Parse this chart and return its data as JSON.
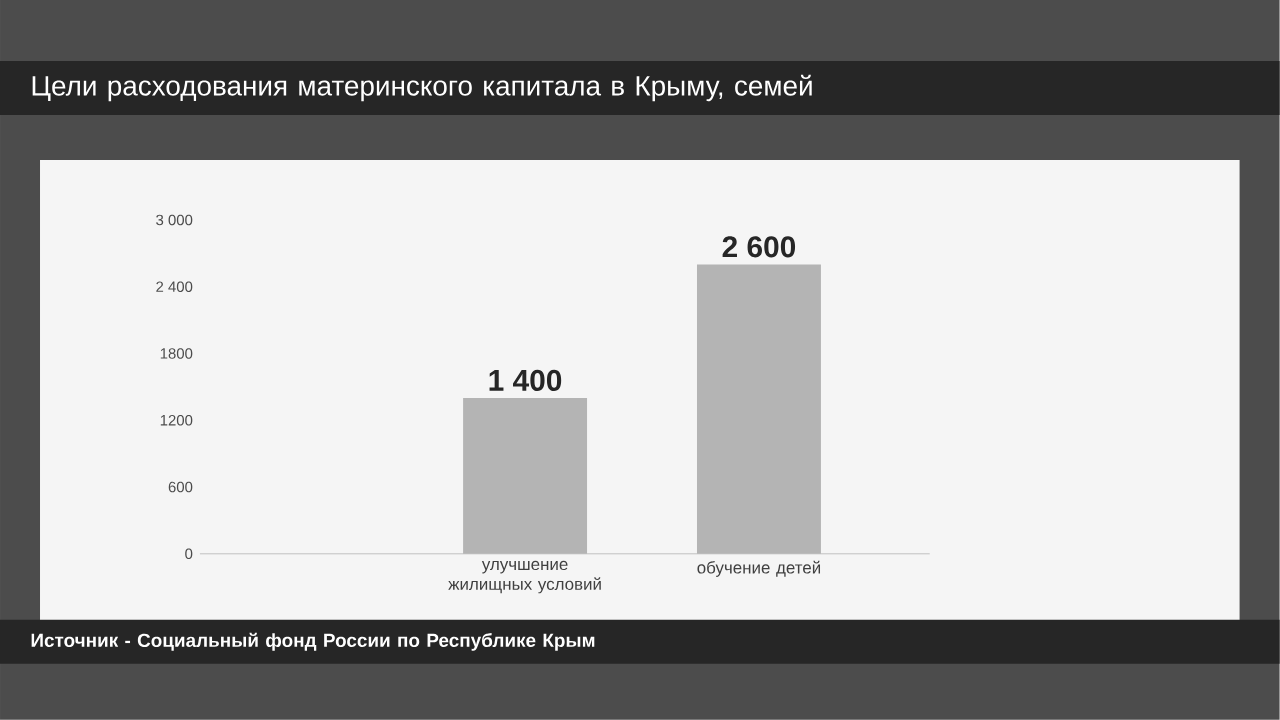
{
  "chart_data": {
    "type": "bar",
    "title": "Цели расходования материнского капитала в Крыму, семей",
    "categories": [
      "улучшение жилищных условий",
      "обучение детей"
    ],
    "values": [
      1400,
      2600
    ],
    "value_labels": [
      "1 400",
      "2 600"
    ],
    "color": "#b4b4b4",
    "ylim": [
      0,
      3000
    ],
    "yticks": [
      0,
      600,
      1200,
      1800,
      {
        "value": 2400,
        "label": "2 400"
      },
      {
        "value": 3000,
        "label": "3 000"
      }
    ],
    "annotations": [
      "Источник - Социальный фонд России по Республике Крым"
    ]
  }
}
